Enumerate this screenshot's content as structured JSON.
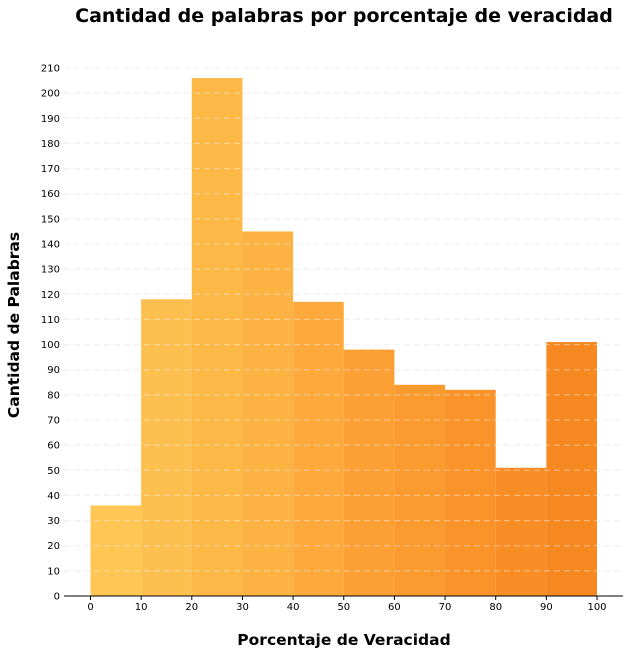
{
  "chart_data": {
    "type": "bar",
    "title": "Cantidad de palabras por porcentaje de veracidad",
    "xlabel": "Porcentaje de Veracidad",
    "ylabel": "Cantidad de Palabras",
    "bins": [
      {
        "from": 0,
        "to": 10,
        "value": 36
      },
      {
        "from": 10,
        "to": 20,
        "value": 118
      },
      {
        "from": 20,
        "to": 30,
        "value": 206
      },
      {
        "from": 30,
        "to": 40,
        "value": 145
      },
      {
        "from": 40,
        "to": 50,
        "value": 117
      },
      {
        "from": 50,
        "to": 60,
        "value": 98
      },
      {
        "from": 60,
        "to": 70,
        "value": 84
      },
      {
        "from": 70,
        "to": 80,
        "value": 82
      },
      {
        "from": 80,
        "to": 90,
        "value": 51
      },
      {
        "from": 90,
        "to": 100,
        "value": 101
      }
    ],
    "xlim": [
      0,
      100
    ],
    "ylim": [
      0,
      210
    ],
    "xticks": [
      0,
      10,
      20,
      30,
      40,
      50,
      60,
      70,
      80,
      90,
      100
    ],
    "yticks": [
      0,
      10,
      20,
      30,
      40,
      50,
      60,
      70,
      80,
      90,
      100,
      110,
      120,
      130,
      140,
      150,
      160,
      170,
      180,
      190,
      200,
      210
    ],
    "grid": true,
    "colors": [
      "#fec655",
      "#fdbf4f",
      "#fdb948",
      "#fdb343",
      "#fda93c",
      "#fca035",
      "#fb9a2f",
      "#fa942a",
      "#f98d26",
      "#f68822"
    ]
  }
}
